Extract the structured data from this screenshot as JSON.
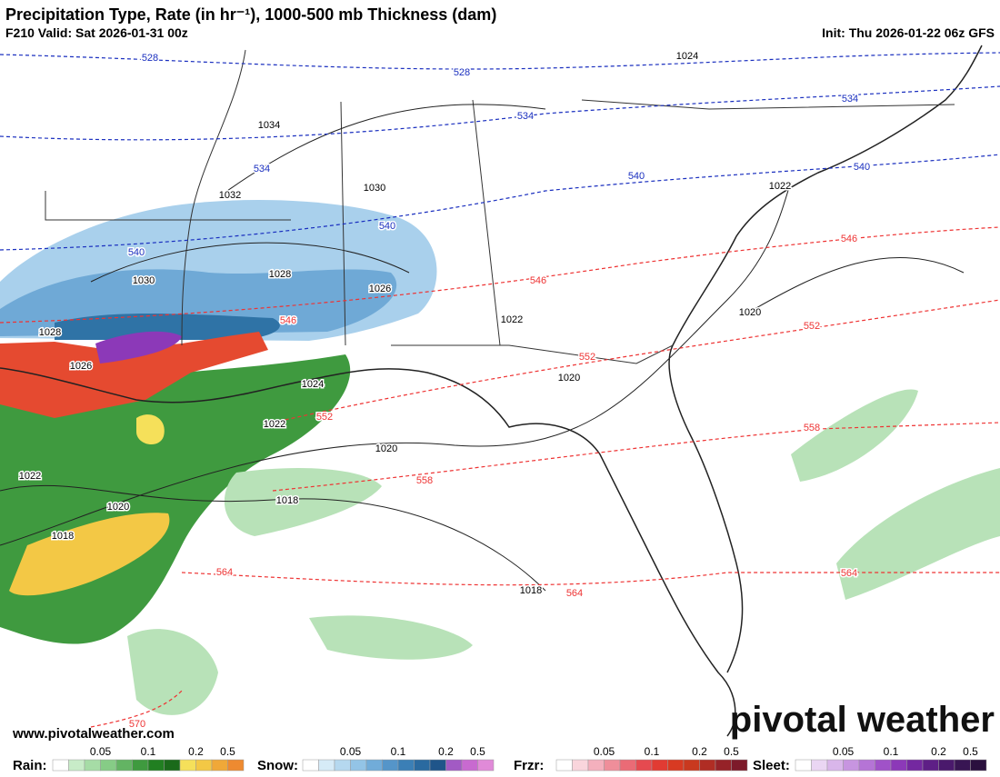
{
  "header": {
    "title": "Precipitation Type, Rate (in hr⁻¹), 1000-500 mb Thickness (dam)",
    "valid": "F210 Valid: Sat 2026-01-31 00z",
    "init": "Init: Thu 2026-01-22 06z GFS"
  },
  "contours": {
    "thickness": [
      528,
      528,
      534,
      534,
      534,
      540,
      540,
      540,
      540,
      546,
      546,
      546,
      552,
      552,
      552,
      558,
      558,
      564,
      564,
      564,
      570
    ],
    "pressure": [
      1024,
      1034,
      1032,
      1030,
      1030,
      1028,
      1028,
      1026,
      1026,
      1024,
      1022,
      1022,
      1022,
      1022,
      1020,
      1020,
      1020,
      1020,
      1018,
      1018,
      1018
    ]
  },
  "branding": {
    "url": "www.pivotalweather.com",
    "logo": "pivotal weather"
  },
  "legend": [
    {
      "name": "Rain:",
      "ticks": [
        "0.05",
        "0.1",
        "0.2",
        "0.5"
      ],
      "colors": [
        "#ffffff",
        "#c8ecc8",
        "#a6dca6",
        "#86cc86",
        "#63b463",
        "#3f9a3f",
        "#217f21",
        "#1a6a1a",
        "#f5e05a",
        "#f3c845",
        "#f0a838",
        "#ee8a30"
      ]
    },
    {
      "name": "Snow:",
      "ticks": [
        "0.05",
        "0.1",
        "0.2",
        "0.5"
      ],
      "colors": [
        "#ffffff",
        "#d6ebf7",
        "#b5d8ef",
        "#93c4e6",
        "#71acd9",
        "#5595c9",
        "#3b7fb6",
        "#2a6aa0",
        "#1f558a",
        "#a25ac4",
        "#c86ad0",
        "#e08ad8"
      ]
    },
    {
      "name": "Frzr:",
      "ticks": [
        "0.05",
        "0.1",
        "0.2",
        "0.5"
      ],
      "colors": [
        "#ffffff",
        "#f9d5dc",
        "#f4b0bd",
        "#ef8e9a",
        "#ea6b76",
        "#e54a50",
        "#e13b33",
        "#d83a22",
        "#c9391f",
        "#b02d24",
        "#962228",
        "#7d1a2a"
      ]
    },
    {
      "name": "Sleet:",
      "ticks": [
        "0.05",
        "0.1",
        "0.2",
        "0.5"
      ],
      "colors": [
        "#ffffff",
        "#ead6f3",
        "#d9b6ea",
        "#c795e0",
        "#b574d6",
        "#a052c8",
        "#8c39b8",
        "#7428a0",
        "#5e1f86",
        "#4a196c",
        "#381553",
        "#2a103e"
      ]
    }
  ]
}
